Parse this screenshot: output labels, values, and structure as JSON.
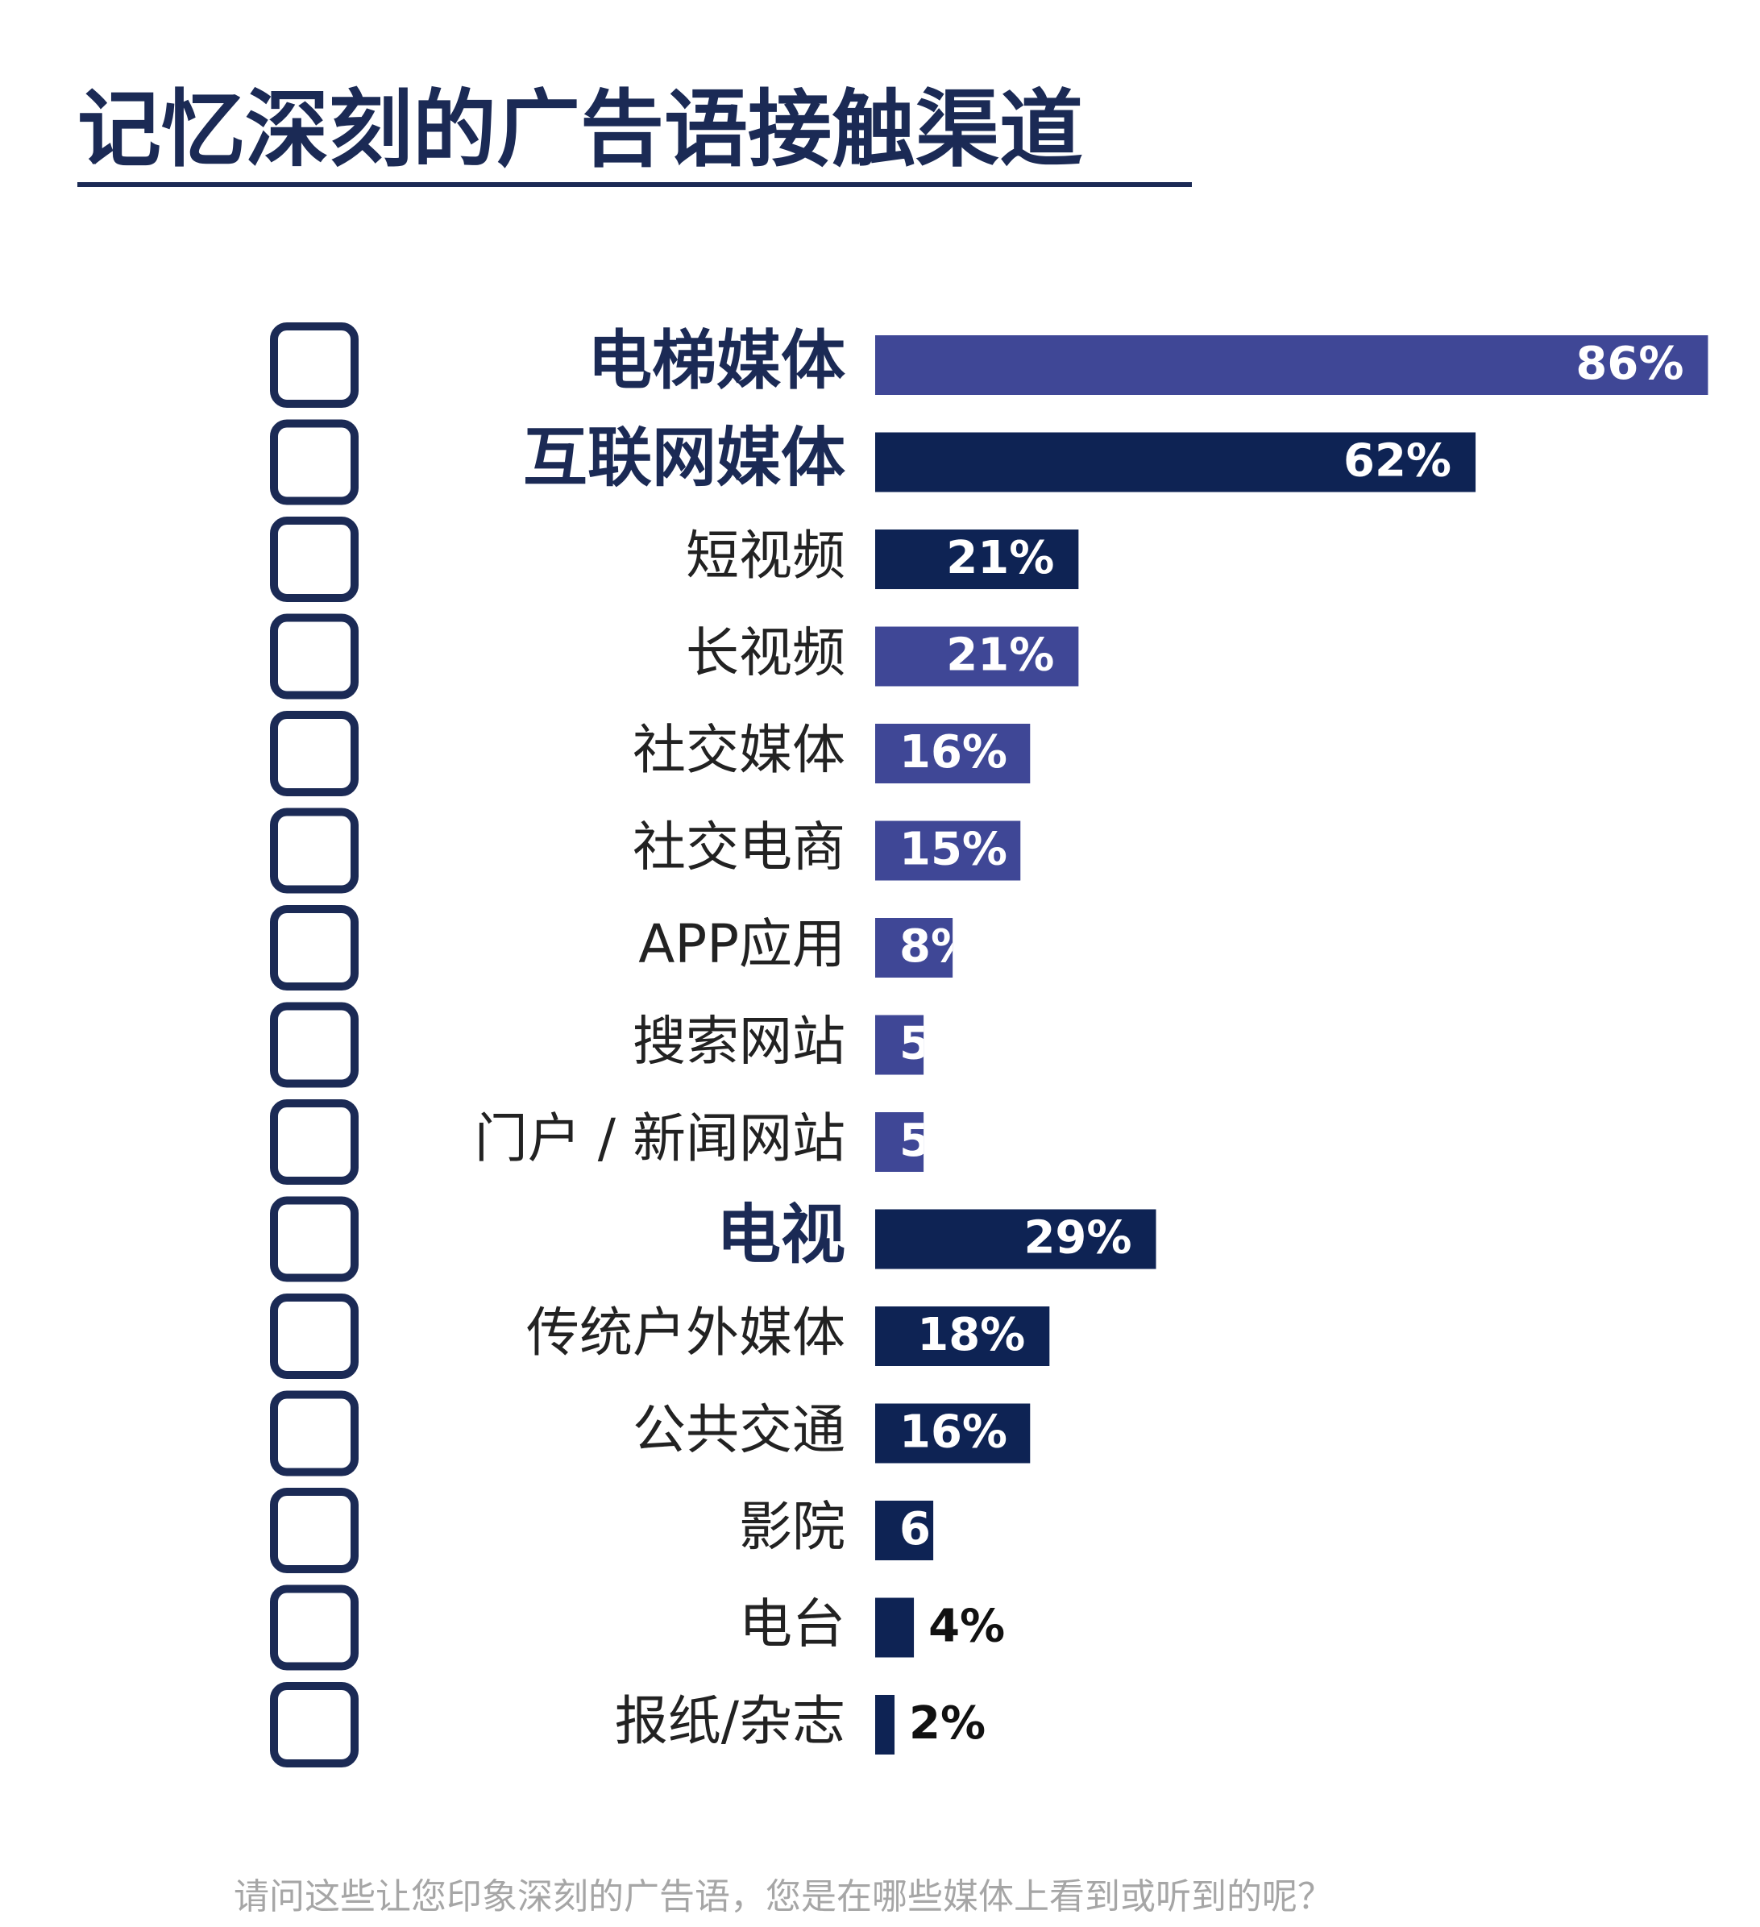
{
  "chart_data": {
    "type": "hbar",
    "title": "记忆深刻的广告语接触渠道",
    "categories": [
      "电梯媒体",
      "互联网媒体",
      "短视频",
      "长视频",
      "社交媒体",
      "社交电商",
      "APP应用",
      "搜索网站",
      "门户 / 新闻网站",
      "电视",
      "传统户外媒体",
      "公共交通",
      "影院",
      "电台",
      "报纸/杂志"
    ],
    "values": [
      86,
      62,
      21,
      21,
      16,
      15,
      8,
      5,
      5,
      29,
      18,
      16,
      6,
      4,
      2
    ],
    "value_labels": [
      "86%",
      "62%",
      "21%",
      "21%",
      "16%",
      "15%",
      "8%",
      "5",
      "5",
      "29%",
      "18%",
      "16%",
      "6",
      "4%",
      "2%"
    ],
    "colors": [
      "#3f4796",
      "#0e2354",
      "#0e2354",
      "#3f4796",
      "#3f4796",
      "#3f4796",
      "#3f4796",
      "#3f4796",
      "#3f4796",
      "#0e2354",
      "#0e2354",
      "#0e2354",
      "#0e2354",
      "#0e2354",
      "#0e2354"
    ],
    "emphasized": [
      0,
      1,
      9
    ],
    "footnote": "请问这些让您印象深刻的广告语，您是在哪些媒体上看到或听到的呢？"
  }
}
